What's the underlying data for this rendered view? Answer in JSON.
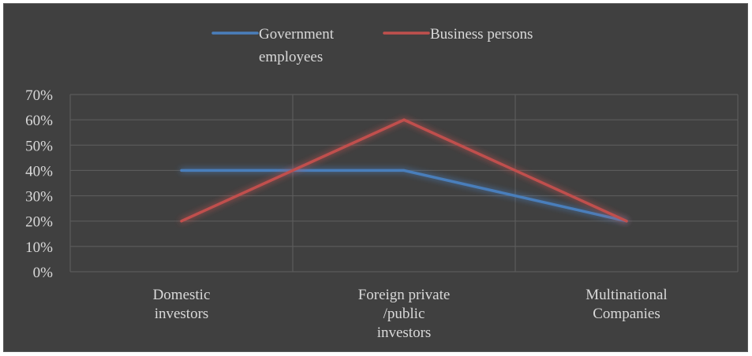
{
  "chart_data": {
    "type": "line",
    "title": "",
    "xlabel": "",
    "ylabel": "",
    "categories": [
      [
        "Domestic",
        "investors"
      ],
      [
        "Foreign private",
        "/public",
        "investors"
      ],
      [
        "Multinational",
        "Companies"
      ]
    ],
    "series": [
      {
        "name": [
          "Government",
          "employees"
        ],
        "values": [
          40,
          40,
          20
        ],
        "color": "#4a7ebb"
      },
      {
        "name": [
          "Business persons"
        ],
        "values": [
          20,
          60,
          20
        ],
        "color": "#c0504d"
      }
    ],
    "ylim": [
      0,
      70
    ],
    "yticks": [
      "0%",
      "10%",
      "20%",
      "30%",
      "40%",
      "50%",
      "60%",
      "70%"
    ],
    "y_tick_values": [
      0,
      10,
      20,
      30,
      40,
      50,
      60,
      70
    ],
    "grid": true,
    "legend_position": "top",
    "background": "#404040",
    "grid_color": "#5f5f5f",
    "text_color": "#d9d9d9"
  }
}
